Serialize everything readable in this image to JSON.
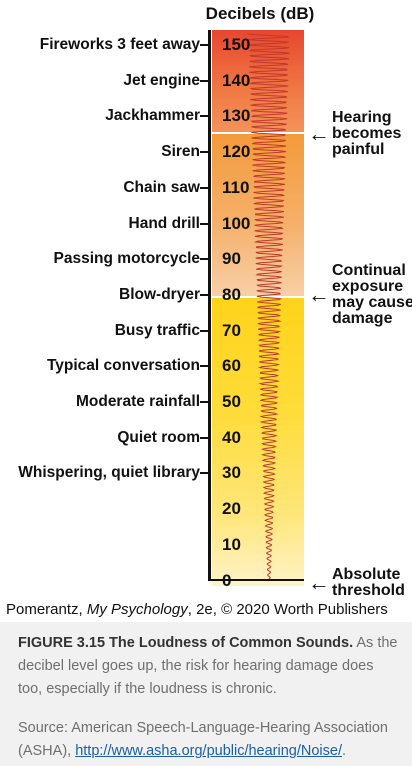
{
  "figure": {
    "title": "Decibels (dB)",
    "scale_values": [
      "150",
      "140",
      "130",
      "120",
      "110",
      "100",
      "90",
      "80",
      "70",
      "60",
      "50",
      "40",
      "30",
      "20",
      "10",
      "0"
    ],
    "sources": [
      {
        "label": "Fireworks 3 feet away",
        "db": 150
      },
      {
        "label": "Jet engine",
        "db": 140
      },
      {
        "label": "Jackhammer",
        "db": 130
      },
      {
        "label": "Siren",
        "db": 120
      },
      {
        "label": "Chain saw",
        "db": 110
      },
      {
        "label": "Hand drill",
        "db": 100
      },
      {
        "label": "Passing motorcycle",
        "db": 90
      },
      {
        "label": "Blow-dryer",
        "db": 80
      },
      {
        "label": "Busy traffic",
        "db": 70
      },
      {
        "label": "Typical conversation",
        "db": 60
      },
      {
        "label": "Moderate rainfall",
        "db": 50
      },
      {
        "label": "Quiet room",
        "db": 40
      },
      {
        "label": "Whispering, quiet library",
        "db": 30
      }
    ],
    "callouts": [
      {
        "text": "Hearing\nbecomes\npainful",
        "db": 125
      },
      {
        "text": "Continual\nexposure\nmay cause\ndamage",
        "db": 80
      },
      {
        "text": "Absolute\nthreshold",
        "db": 0
      }
    ],
    "arrow_glyph": "←",
    "colors": {
      "painful": "#e8462f",
      "damage": "#f5a050",
      "safe": "#ffd31a"
    }
  },
  "credit": {
    "author": "Pomerantz, ",
    "book": "My Psychology",
    "rest": ", 2e, © 2020 Worth Publishers"
  },
  "caption": {
    "label": "FIGURE 3.15 The Loudness of Common Sounds.",
    "text": " As the decibel level goes up, the risk for hearing damage does too, especially if the loudness is chronic.",
    "source_prefix": "Source: American Speech-Language-Hearing Association (ASHA), ",
    "source_link": "http://www.asha.org/public/hearing/Noise/",
    "source_suffix": "."
  }
}
